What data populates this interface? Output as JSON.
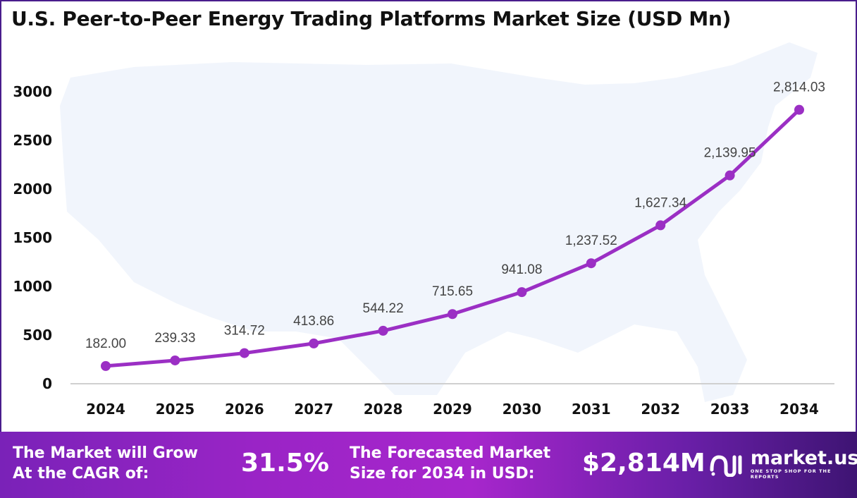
{
  "chart_data": {
    "type": "line",
    "title": "U.S. Peer-to-Peer Energy Trading Platforms Market Size (USD Mn)",
    "categories": [
      "2024",
      "2025",
      "2026",
      "2027",
      "2028",
      "2029",
      "2030",
      "2031",
      "2032",
      "2033",
      "2034"
    ],
    "values": [
      182.0,
      239.33,
      314.72,
      413.86,
      544.22,
      715.65,
      941.08,
      1237.52,
      1627.34,
      2139.95,
      2814.03
    ],
    "data_labels": [
      "182.00",
      "239.33",
      "314.72",
      "413.86",
      "544.22",
      "715.65",
      "941.08",
      "1,237.52",
      "1,627.34",
      "2,139.95",
      "2,814.03"
    ],
    "yticks": [
      "0",
      "500",
      "1000",
      "1500",
      "2000",
      "2500",
      "3000"
    ],
    "ylim": [
      0,
      3000
    ],
    "xlabel": "",
    "ylabel": "",
    "grid": false,
    "line_color": "#9b2fc4",
    "background_image": "us-map-silhouette"
  },
  "banner": {
    "cagr_label": "The Market will Grow\nAt the CAGR of:",
    "cagr_value": "31.5%",
    "forecast_label": "The Forecasted Market\nSize for 2034 in USD:",
    "forecast_value": "$2,814M",
    "logo_name": "market.us",
    "logo_tagline": "ONE STOP SHOP FOR THE REPORTS"
  }
}
